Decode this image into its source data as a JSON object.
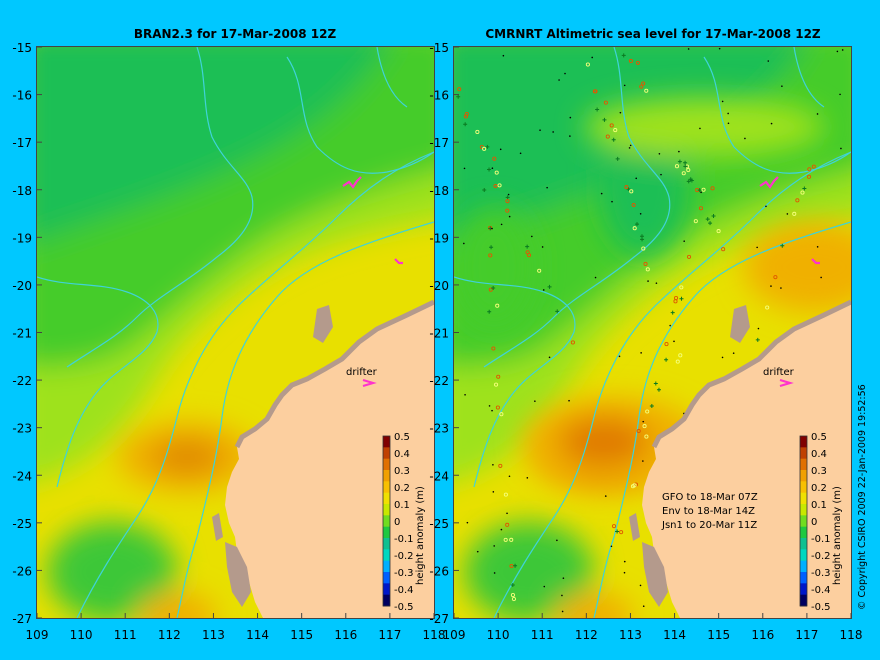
{
  "background_color": "#00c8ff",
  "land_color": "#fccf9f",
  "coast_color": "#b49a8c",
  "contour_color": "#3fd3d8",
  "drifter_color": "#ff33cc",
  "panels": [
    {
      "id": "left",
      "title": "BRAN2.3 for 17-Mar-2008 12Z",
      "drifter_label": "drifter",
      "colorbar_label": "height anomaly (m)",
      "has_track_points": false,
      "notes": []
    },
    {
      "id": "right",
      "title": "CMRNRT Altimetric sea level  for 17-Mar-2008 12Z",
      "drifter_label": "drifter",
      "colorbar_label": "height anomaly (m)",
      "has_track_points": true,
      "notes": [
        "GFO to 18-Mar 07Z",
        "Env to 18-Mar 14Z",
        "Jsn1 to 20-Mar 11Z"
      ]
    }
  ],
  "y_axis": {
    "min": -27,
    "max": -15,
    "ticks": [
      "-15",
      "-16",
      "-17",
      "-18",
      "-19",
      "-20",
      "-21",
      "-22",
      "-23",
      "-24",
      "-25",
      "-26",
      "-27"
    ]
  },
  "x_axis": {
    "min": 109,
    "max": 118,
    "ticks": [
      "109",
      "110",
      "111",
      "112",
      "113",
      "114",
      "115",
      "116",
      "117",
      "118"
    ]
  },
  "colorbar": {
    "min": -0.5,
    "max": 0.5,
    "ticks": [
      "0.5",
      "0.4",
      "0.3",
      "0.2",
      "0.1",
      "0",
      "-0.1",
      "-0.2",
      "-0.3",
      "-0.4",
      "-0.5"
    ],
    "colors": [
      "#000060",
      "#0018c8",
      "#0060ff",
      "#00b0ff",
      "#00d8c0",
      "#10c090",
      "#20c840",
      "#70dc20",
      "#c8e800",
      "#f0e000",
      "#f8c000",
      "#f0a000",
      "#e07000",
      "#c04000",
      "#800000"
    ]
  },
  "copyright": "© Copyright CSIRO 2009   22-Jan-2009 19:52:56"
}
